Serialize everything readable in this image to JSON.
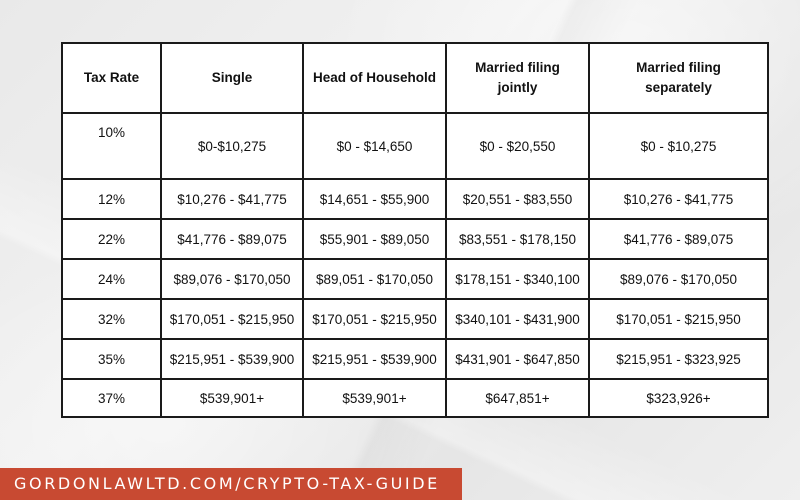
{
  "table": {
    "headers": [
      "Tax Rate",
      "Single",
      "Head of Household",
      "Married filing jointly",
      "Married filing separately"
    ],
    "rows": [
      [
        "10%",
        "$0-$10,275",
        "$0 - $14,650",
        "$0 - $20,550",
        "$0 - $10,275"
      ],
      [
        "12%",
        "$10,276 - $41,775",
        "$14,651 - $55,900",
        "$20,551 - $83,550",
        "$10,276 - $41,775"
      ],
      [
        "22%",
        "$41,776 - $89,075",
        "$55,901 - $89,050",
        "$83,551 - $178,150",
        "$41,776 - $89,075"
      ],
      [
        "24%",
        "$89,076 - $170,050",
        "$89,051 - $170,050",
        "$178,151 - $340,100",
        "$89,076 - $170,050"
      ],
      [
        "32%",
        "$170,051 - $215,950",
        "$170,051 - $215,950",
        "$340,101 - $431,900",
        "$170,051 - $215,950"
      ],
      [
        "35%",
        "$215,951 - $539,900",
        "$215,951 - $539,900",
        "$431,901 - $647,850",
        "$215,951 - $323,925"
      ],
      [
        "37%",
        "$539,901+",
        "$539,901+",
        "$647,851+",
        "$323,926+"
      ]
    ]
  },
  "banner": {
    "text": "GORDONLAWLTD.COM/CRYPTO-TAX-GUIDE"
  },
  "colors": {
    "banner_bg": "#c84a32",
    "table_border": "#1a1a1a",
    "background": "#ececec"
  }
}
